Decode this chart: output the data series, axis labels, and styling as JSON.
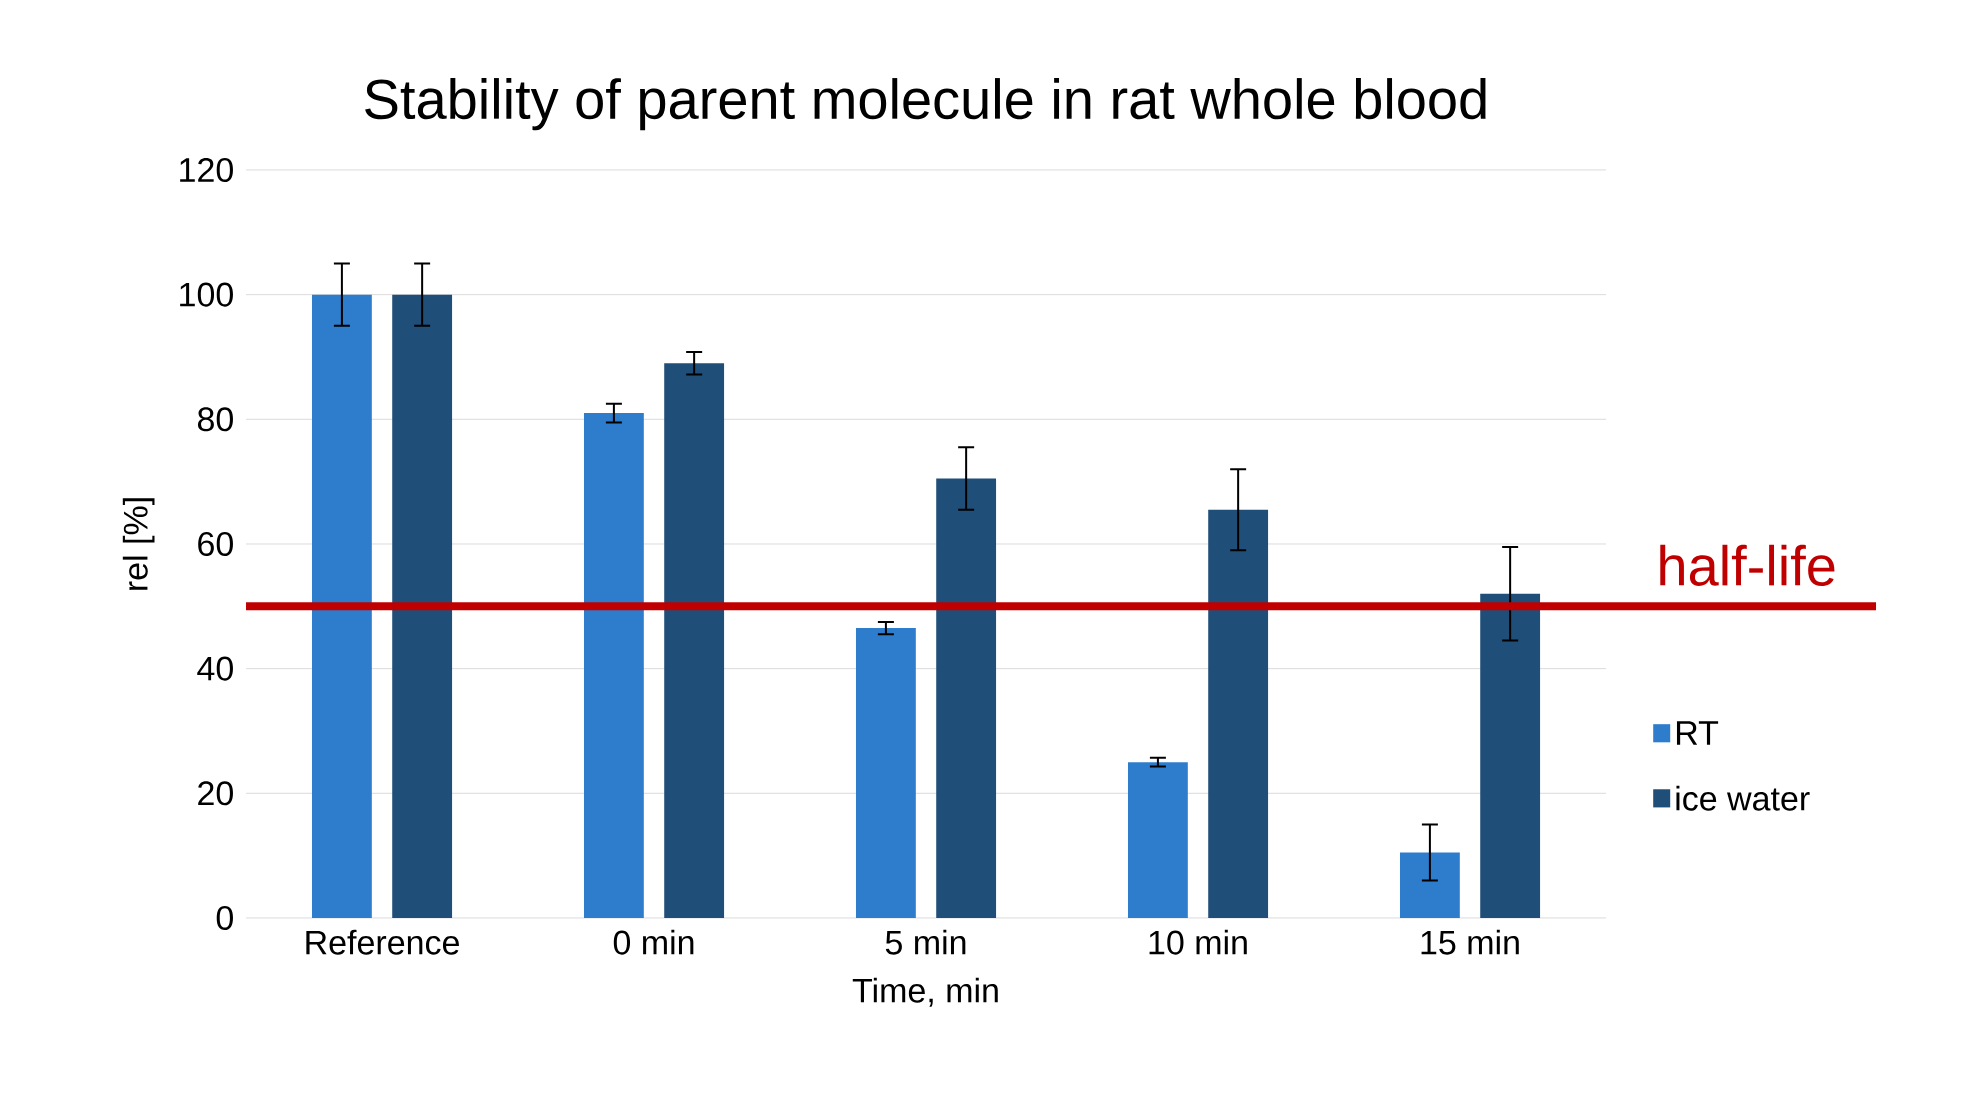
{
  "chart_data": {
    "type": "bar",
    "title": "Stability of parent molecule in rat whole blood",
    "xlabel": "Time, min",
    "ylabel": "rel [%]",
    "categories": [
      "Reference",
      "0 min",
      "5 min",
      "10 min",
      "15 min"
    ],
    "series": [
      {
        "name": "RT",
        "color": "#2e7dcc",
        "values": [
          100,
          81,
          46.5,
          25,
          10.5
        ],
        "errors": [
          5,
          1.5,
          1,
          0.7,
          4.5
        ]
      },
      {
        "name": "ice water",
        "color": "#1f4e79",
        "values": [
          100,
          89,
          70.5,
          65.5,
          52
        ],
        "errors": [
          5,
          1.8,
          5,
          6.5,
          7.5
        ]
      }
    ],
    "ylim": [
      0,
      120
    ],
    "yticks": [
      0,
      20,
      40,
      60,
      80,
      100,
      120
    ],
    "grid": "y",
    "legend": "right",
    "ref_lines": [
      {
        "axis": "y",
        "value": 50,
        "label": "half-life",
        "color": "#c00000"
      }
    ]
  }
}
